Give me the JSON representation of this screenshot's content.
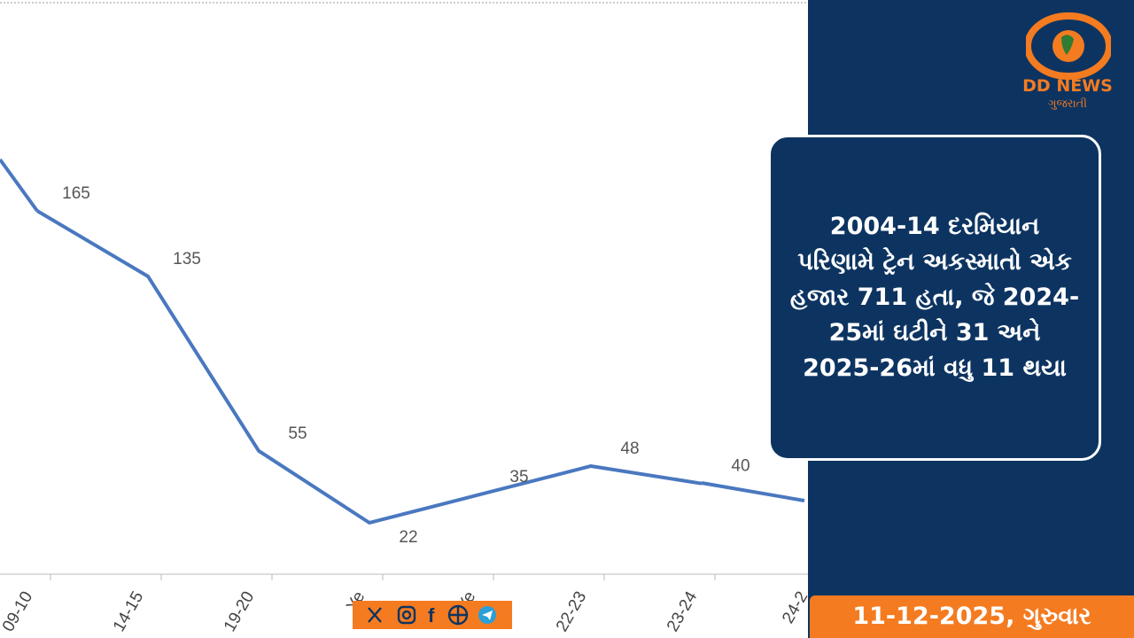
{
  "chart_data": {
    "type": "line",
    "categories": [
      "09-10",
      "14-15",
      "19-20",
      "Ye",
      "Ye",
      "22-23",
      "23-24",
      "24-2"
    ],
    "values": [
      165,
      135,
      55,
      22,
      35,
      48,
      40,
      null
    ],
    "color": "#4a78c0"
  },
  "brand": {
    "name": "DD NEWS",
    "subtitle": "ગુજરાતી"
  },
  "headline": {
    "lines": [
      "2004-14 દરમિયાન",
      "પરિણામે ટ્રેન અકસ્માતો એક",
      "હજાર 711 હતા, જે 2024-",
      "25માં ઘટીને 31 અને",
      "2025-26માં વધુ 11 થયા"
    ]
  },
  "date": "11-12-2025, ગુરુવાર"
}
